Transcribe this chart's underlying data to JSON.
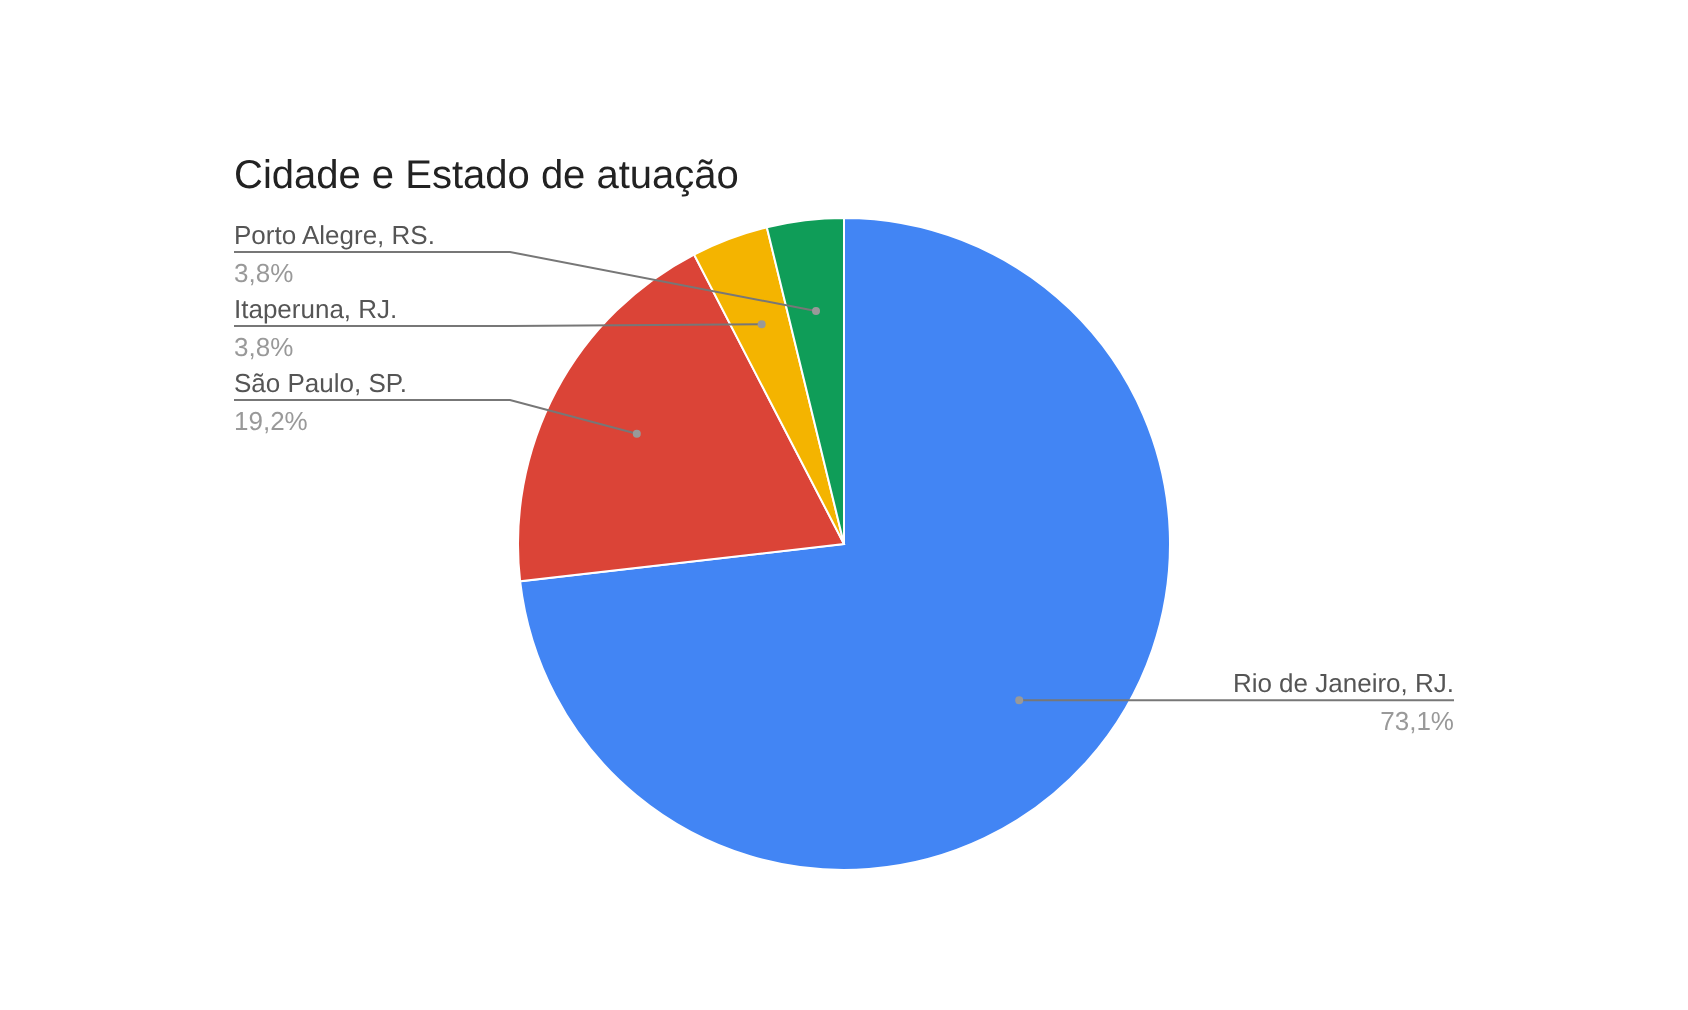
{
  "chart_data": {
    "type": "pie",
    "title": "Cidade e Estado de atuação",
    "categories": [
      "Rio de Janeiro, RJ.",
      "São Paulo, SP.",
      "Itaperuna, RJ.",
      "Porto Alegre, RS."
    ],
    "values": [
      73.1,
      19.2,
      3.8,
      3.8
    ],
    "value_labels": [
      "73,1%",
      "19,2%",
      "3,8%",
      "3,8%"
    ],
    "colors": [
      "#4285f4",
      "#db4437",
      "#f4b400",
      "#0f9d58"
    ]
  }
}
